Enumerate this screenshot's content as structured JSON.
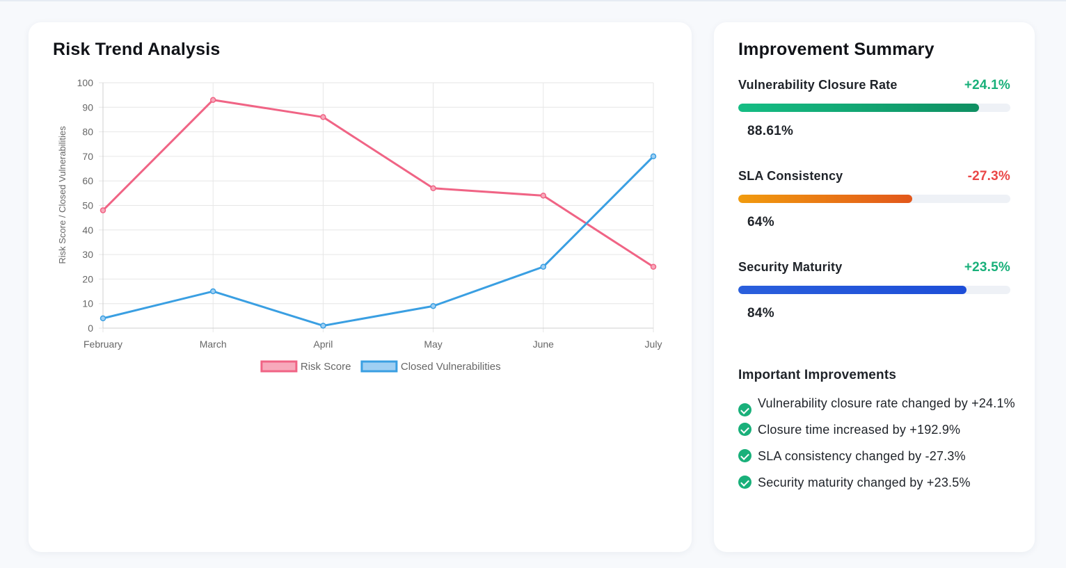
{
  "chart_card": {
    "title": "Risk Trend Analysis"
  },
  "chart_data": {
    "type": "line",
    "categories": [
      "February",
      "March",
      "April",
      "May",
      "June",
      "July"
    ],
    "series": [
      {
        "name": "Risk Score",
        "values": [
          48,
          93,
          86,
          57,
          54,
          25
        ],
        "color": "#f06485",
        "fill": "#f7a9bb"
      },
      {
        "name": "Closed Vulnerabilities",
        "values": [
          4,
          15,
          1,
          9,
          25,
          70
        ],
        "color": "#3a9fe2",
        "fill": "#9fcff3"
      }
    ],
    "ylabel": "Risk Score / Closed Vulnerabilities",
    "xlabel": "",
    "ylim": [
      0,
      100
    ],
    "yticks": [
      "0",
      "10",
      "20",
      "30",
      "40",
      "50",
      "60",
      "70",
      "80",
      "90",
      "100"
    ],
    "grid": true,
    "legend": "bottom"
  },
  "summary_card": {
    "title": "Improvement Summary",
    "metrics": [
      {
        "label": "Vulnerability Closure Rate",
        "change": "+24.1%",
        "value": "88.61%",
        "percent": 88.61,
        "gradient": [
          "#15bd84",
          "#0f8f62"
        ]
      },
      {
        "label": "SLA Consistency",
        "change": "-27.3%",
        "value": "64%",
        "percent": 64,
        "gradient": [
          "#f19b0e",
          "#e2571b"
        ]
      },
      {
        "label": "Security Maturity",
        "change": "+23.5%",
        "value": "84%",
        "percent": 84,
        "gradient": [
          "#2a5fdc",
          "#1d4ed8"
        ]
      }
    ],
    "improvements_title": "Important Improvements",
    "improvements": [
      "Vulnerability closure rate changed by +24.1%",
      "Closure time increased by +192.9%",
      "SLA consistency changed by -27.3%",
      "Security maturity changed by +23.5%"
    ]
  }
}
